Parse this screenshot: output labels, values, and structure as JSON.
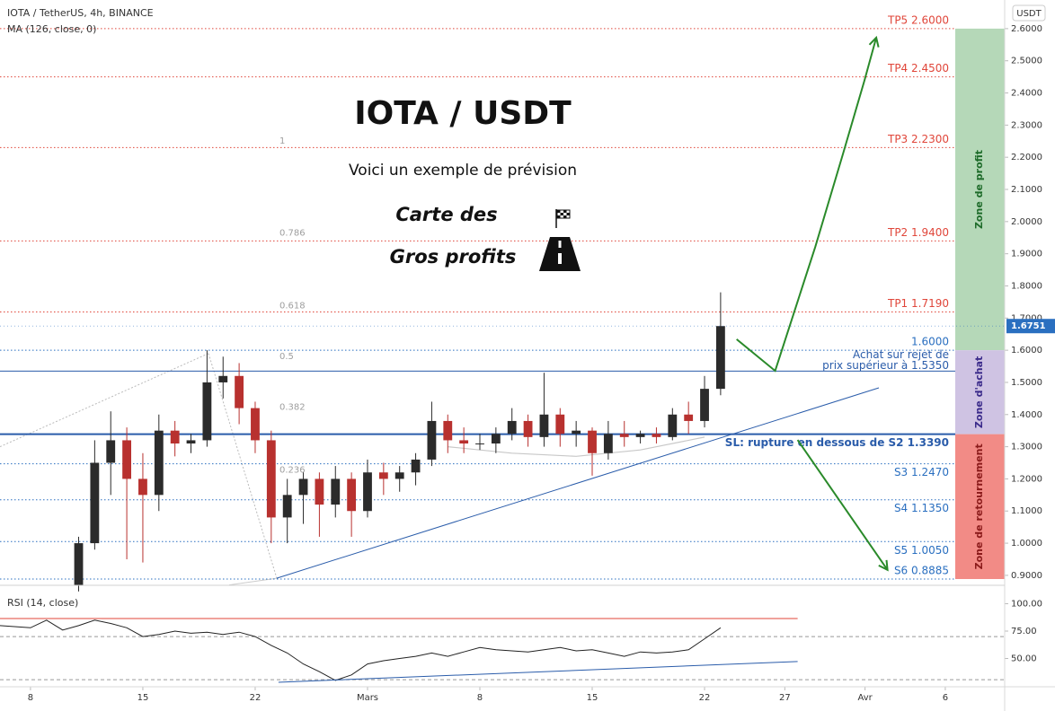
{
  "chart_data": {
    "type": "candlestick",
    "title": "IOTA / TetherUS, 4h, BINANCE",
    "currency": "USDT",
    "xlim": [
      -1.9,
      60.7
    ],
    "xticks": [
      {
        "value": 0,
        "label": "8"
      },
      {
        "value": 7,
        "label": "15"
      },
      {
        "value": 14,
        "label": "22"
      },
      {
        "value": 21,
        "label": "Mars"
      },
      {
        "value": 28,
        "label": "8"
      },
      {
        "value": 35,
        "label": "15"
      },
      {
        "value": 42,
        "label": "22"
      },
      {
        "value": 47,
        "label": "27"
      },
      {
        "value": 52,
        "label": "Avr"
      },
      {
        "value": 57,
        "label": "6"
      }
    ],
    "ylim": [
      0.869,
      2.689
    ],
    "yticks": [
      {
        "value": 0.9,
        "label": "0.9000"
      },
      {
        "value": 1.0,
        "label": "1.0000"
      },
      {
        "value": 1.1,
        "label": "1.1000"
      },
      {
        "value": 1.2,
        "label": "1.2000"
      },
      {
        "value": 1.3,
        "label": "1.3000"
      },
      {
        "value": 1.4,
        "label": "1.4000"
      },
      {
        "value": 1.5,
        "label": "1.5000"
      },
      {
        "value": 1.6,
        "label": "1.6000"
      },
      {
        "value": 1.7,
        "label": "1.7000"
      },
      {
        "value": 1.8,
        "label": "1.8000"
      },
      {
        "value": 1.9,
        "label": "1.9000"
      },
      {
        "value": 2.0,
        "label": "2.0000"
      },
      {
        "value": 2.1,
        "label": "2.1000"
      },
      {
        "value": 2.2,
        "label": "2.2000"
      },
      {
        "value": 2.3,
        "label": "2.3000"
      },
      {
        "value": 2.4,
        "label": "2.4000"
      },
      {
        "value": 2.5,
        "label": "2.5000"
      },
      {
        "value": 2.6,
        "label": "2.6000"
      }
    ],
    "last_price": 1.6751,
    "up_color": "#2b2b2b",
    "down_color": "#b8312f",
    "candles": {
      "x": [
        3,
        4,
        5,
        6,
        7,
        8,
        9,
        10,
        11,
        12,
        13,
        14,
        15,
        16,
        17,
        18,
        19,
        20,
        21,
        22,
        23,
        24,
        25,
        26,
        27,
        28,
        29,
        30,
        31,
        32,
        33,
        34,
        35,
        36,
        37,
        38,
        39,
        40,
        41,
        42,
        43
      ],
      "open": [
        0.87,
        1.0,
        1.25,
        1.32,
        1.2,
        1.15,
        1.35,
        1.31,
        1.32,
        1.5,
        1.52,
        1.42,
        1.32,
        1.08,
        1.15,
        1.2,
        1.12,
        1.2,
        1.1,
        1.22,
        1.2,
        1.22,
        1.26,
        1.38,
        1.32,
        1.31,
        1.31,
        1.34,
        1.38,
        1.33,
        1.4,
        1.34,
        1.35,
        1.28,
        1.34,
        1.33,
        1.34,
        1.33,
        1.4,
        1.38,
        1.48
      ],
      "high": [
        1.02,
        1.32,
        1.41,
        1.36,
        1.28,
        1.4,
        1.38,
        1.34,
        1.6,
        1.58,
        1.56,
        1.44,
        1.35,
        1.2,
        1.22,
        1.22,
        1.24,
        1.22,
        1.26,
        1.25,
        1.24,
        1.28,
        1.44,
        1.4,
        1.36,
        1.34,
        1.36,
        1.42,
        1.4,
        1.53,
        1.42,
        1.38,
        1.36,
        1.38,
        1.38,
        1.35,
        1.36,
        1.42,
        1.44,
        1.52,
        1.78
      ],
      "low": [
        0.85,
        0.98,
        1.15,
        0.95,
        0.94,
        1.1,
        1.27,
        1.28,
        1.3,
        1.45,
        1.37,
        1.28,
        1.0,
        1.0,
        1.06,
        1.02,
        1.08,
        1.02,
        1.08,
        1.15,
        1.16,
        1.18,
        1.24,
        1.28,
        1.28,
        1.29,
        1.28,
        1.32,
        1.3,
        1.3,
        1.3,
        1.3,
        1.21,
        1.26,
        1.3,
        1.31,
        1.31,
        1.32,
        1.34,
        1.36,
        1.46
      ],
      "close": [
        1.0,
        1.25,
        1.32,
        1.2,
        1.15,
        1.35,
        1.31,
        1.32,
        1.5,
        1.52,
        1.42,
        1.32,
        1.08,
        1.15,
        1.2,
        1.12,
        1.2,
        1.1,
        1.22,
        1.2,
        1.22,
        1.26,
        1.38,
        1.32,
        1.31,
        1.31,
        1.34,
        1.38,
        1.33,
        1.4,
        1.34,
        1.35,
        1.28,
        1.34,
        1.33,
        1.34,
        1.33,
        1.4,
        1.38,
        1.48,
        1.6751
      ]
    },
    "ma": {
      "name": "MA (126, close, 0)",
      "color": "#c8c8c8",
      "x": [
        26,
        30,
        34,
        38,
        42
      ],
      "values": [
        1.3,
        1.28,
        1.27,
        1.29,
        1.33
      ]
    },
    "fib": {
      "range": [
        0.911,
        2.251
      ],
      "levels": [
        1,
        0.786,
        0.618,
        0.5,
        0.382,
        0.236
      ],
      "color": "#9e9e9e"
    },
    "levels": [
      {
        "label": "TP5 2.6000",
        "value": 2.6,
        "color": "#e0463a",
        "style": "dotted",
        "label_side": "above"
      },
      {
        "label": "TP4 2.4500",
        "value": 2.45,
        "color": "#e0463a",
        "style": "dotted",
        "label_side": "above"
      },
      {
        "label": "TP3 2.2300",
        "value": 2.23,
        "color": "#e0463a",
        "style": "dotted",
        "label_side": "above"
      },
      {
        "label": "TP2 1.9400",
        "value": 1.94,
        "color": "#e0463a",
        "style": "dotted",
        "label_side": "above"
      },
      {
        "label": "TP1 1.7190",
        "value": 1.719,
        "color": "#e0463a",
        "style": "dotted",
        "label_side": "above"
      },
      {
        "label": "1.6000",
        "value": 1.6,
        "color": "#2a6fc0",
        "style": "dotted",
        "label_side": "above"
      },
      {
        "label": [
          "Achat sur rejet de",
          "prix supérieur à 1.5350"
        ],
        "value": 1.535,
        "color": "#2a5caa",
        "style": "solid",
        "label_side": "above"
      },
      {
        "label": "SL: rupture en dessous de S2 1.3390",
        "value": 1.339,
        "color": "#2a5caa",
        "style": "thick",
        "label_side": "below"
      },
      {
        "label": "S3 1.2470",
        "value": 1.247,
        "color": "#2a6fc0",
        "style": "dotted",
        "label_side": "below"
      },
      {
        "label": "S4 1.1350",
        "value": 1.135,
        "color": "#2a6fc0",
        "style": "dotted",
        "label_side": "below"
      },
      {
        "label": "S5 1.0050",
        "value": 1.005,
        "color": "#2a6fc0",
        "style": "dotted",
        "label_side": "below"
      },
      {
        "label": "S6 0.8885",
        "value": 0.8885,
        "color": "#2a6fc0",
        "style": "dotted",
        "label_side": "above"
      }
    ],
    "zones": [
      {
        "label": "Zone de profit",
        "from": 1.6,
        "to": 2.6,
        "color": "#b5d8b8",
        "text_color": "#1e6b2a"
      },
      {
        "label": "Zone d'achat",
        "from": 1.339,
        "to": 1.6,
        "color": "#cfc3e3",
        "text_color": "#3a2a8a"
      },
      {
        "label": "Zone de retournement",
        "from": 0.8885,
        "to": 1.339,
        "color": "#f28b86",
        "text_color": "#8a1a1a"
      }
    ],
    "trendline": {
      "x": [
        15.34,
        52.86
      ],
      "y": [
        0.891,
        1.483
      ],
      "color": "#2a5caa"
    },
    "arrows": [
      {
        "x": [
          44.0,
          46.4,
          48.9,
          50.6,
          51.96,
          52.7
        ],
        "y": [
          1.634,
          1.536,
          1.922,
          2.206,
          2.438,
          2.572
        ],
        "color": "#2a8a2a"
      },
      {
        "x": [
          47.8,
          53.4
        ],
        "y": [
          1.321,
          0.917
        ],
        "color": "#2a8a2a"
      }
    ],
    "annotations": {
      "headline": "IOTA / USDT",
      "subtitle": "Voici un exemple de prévision",
      "line1": "Carte des",
      "line2": "Gros profits"
    },
    "rsi": {
      "name": "RSI (14, close)",
      "color": "#222",
      "ylim": [
        24.2,
        116.8
      ],
      "yticks": [
        {
          "value": 100,
          "label": "100.00"
        },
        {
          "value": 75,
          "label": "75.00"
        },
        {
          "value": 50,
          "label": "50.00"
        }
      ],
      "bands": [
        {
          "value": 86.5,
          "color": "#e0463a",
          "style": "solid"
        },
        {
          "value": 70,
          "color": "#999",
          "style": "dashed"
        },
        {
          "value": 30.7,
          "color": "#999",
          "style": "dashed"
        }
      ],
      "x": [
        -1.9,
        0,
        1,
        2,
        3,
        4,
        5,
        6,
        7,
        8,
        9,
        10,
        11,
        12,
        13,
        14,
        15,
        16,
        17,
        18,
        19,
        20,
        21,
        22,
        23,
        24,
        25,
        26,
        27,
        28,
        29,
        30,
        31,
        32,
        33,
        34,
        35,
        36,
        37,
        38,
        39,
        40,
        41,
        42,
        43
      ],
      "values": [
        80,
        78,
        85,
        76,
        80,
        85,
        82,
        78,
        70,
        72,
        75,
        73,
        74,
        72,
        74,
        70,
        62,
        55,
        45,
        38,
        30,
        35,
        45,
        48,
        50,
        52,
        55,
        52,
        56,
        60,
        58,
        57,
        56,
        58,
        60,
        57,
        58,
        55,
        52,
        56,
        55,
        56,
        58,
        68,
        78
      ],
      "trendline": {
        "x": [
          15.45,
          47.8
        ],
        "y": [
          28.3,
          47.2
        ],
        "color": "#2a5caa"
      }
    }
  }
}
